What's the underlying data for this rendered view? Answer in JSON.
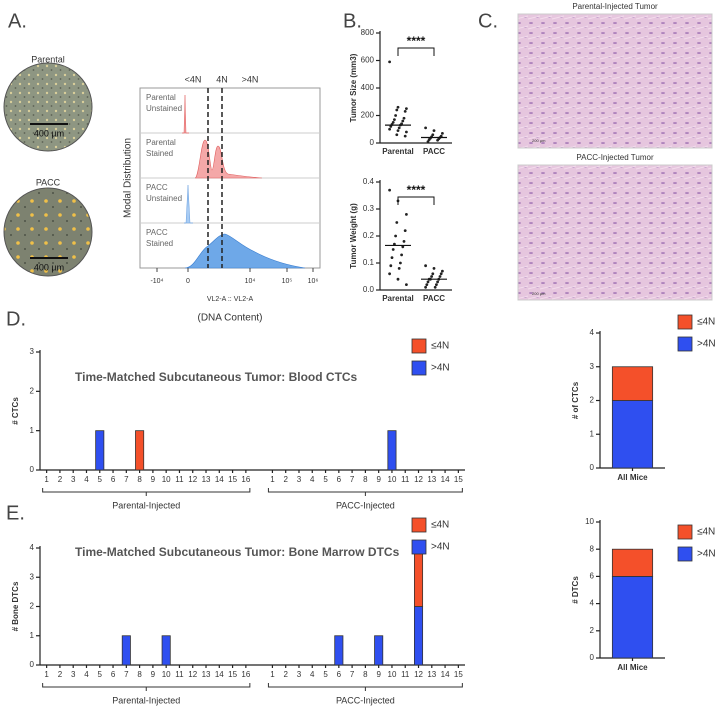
{
  "panel_labels": [
    "A.",
    "B.",
    "C.",
    "D.",
    "E."
  ],
  "panel_a": {
    "images": [
      {
        "label": "Parental",
        "scale": "400 µm"
      },
      {
        "label": "PACC",
        "scale": "400 µm"
      }
    ],
    "flow": {
      "y_label": "Modal Distribution",
      "gates": [
        "<4N",
        "4N",
        ">4N"
      ],
      "rows": [
        [
          "Parental",
          "Unstained"
        ],
        [
          "Parental",
          "Stained"
        ],
        [
          "PACC",
          "Unstained"
        ],
        [
          "PACC",
          "Stained"
        ]
      ],
      "x_ticks": [
        "-10⁴",
        "0",
        "10⁴",
        "10⁵",
        "10⁶"
      ],
      "x_label": "VL2-A :: VL2-A",
      "x_caption": "(DNA Content)"
    }
  },
  "panel_c": {
    "images": [
      {
        "label": "Parental-Injected Tumor",
        "scale": "200 µm"
      },
      {
        "label": "PACC-Injected Tumor",
        "scale": "200 µm"
      }
    ]
  },
  "chart_data": [
    {
      "type": "strip",
      "y_label": "Tumor Size (mm3)",
      "categories": [
        "Parental",
        "PACC"
      ],
      "values": [
        [
          590,
          260,
          250,
          240,
          230,
          200,
          180,
          170,
          160,
          150,
          140,
          135,
          130,
          120,
          110,
          100,
          90,
          80,
          60,
          50
        ],
        [
          110,
          90,
          70,
          60,
          50,
          45,
          40,
          35,
          30,
          25,
          20,
          10
        ]
      ],
      "medians": [
        130,
        40
      ],
      "annotation": "****",
      "color": "#222",
      "ylim": [
        0,
        800
      ],
      "yticks": [
        0,
        200,
        400,
        600,
        800
      ]
    },
    {
      "type": "strip",
      "y_label": "Tumor Weight (g)",
      "categories": [
        "Parental",
        "PACC"
      ],
      "values": [
        [
          0.37,
          0.33,
          0.28,
          0.25,
          0.22,
          0.2,
          0.18,
          0.17,
          0.16,
          0.15,
          0.13,
          0.12,
          0.1,
          0.09,
          0.08,
          0.06,
          0.04,
          0.02
        ],
        [
          0.09,
          0.08,
          0.07,
          0.06,
          0.06,
          0.05,
          0.05,
          0.04,
          0.04,
          0.04,
          0.03,
          0.03,
          0.02,
          0.02,
          0.01,
          0.01
        ]
      ],
      "medians": [
        0.165,
        0.04
      ],
      "annotation": "****",
      "color": "#222",
      "ylim": [
        0,
        0.4
      ],
      "yticks": [
        {
          "value": 0,
          "label": "0.0"
        },
        0.1,
        0.2,
        0.3,
        0.4
      ]
    },
    {
      "type": "bar",
      "stacked": true,
      "title": "Time-Matched Subcutaneous Tumor: Blood CTCs",
      "y_label": "# CTCs",
      "groups": [
        {
          "name": "Parental-Injected",
          "categories": [
            "1",
            "2",
            "3",
            "4",
            "5",
            "6",
            "7",
            "8",
            "9",
            "10",
            "11",
            "12",
            "13",
            "14",
            "15",
            "16"
          ]
        },
        {
          "name": "PACC-Injected",
          "categories": [
            "1",
            "2",
            "3",
            "4",
            "5",
            "6",
            "7",
            "8",
            "9",
            "10",
            "11",
            "12",
            "13",
            "14",
            "15"
          ]
        }
      ],
      "series": [
        {
          "name": "≤4N",
          "color": "#f4502a",
          "values": [
            0,
            0,
            0,
            0,
            0,
            0,
            0,
            1,
            0,
            0,
            0,
            0,
            0,
            0,
            0,
            0,
            0,
            0,
            0,
            0,
            0,
            0,
            0,
            0,
            0,
            0,
            0,
            0,
            0,
            0,
            0
          ]
        },
        {
          "name": ">4N",
          "color": "#2f4ff0",
          "values": [
            0,
            0,
            0,
            0,
            1,
            0,
            0,
            0,
            0,
            0,
            0,
            0,
            0,
            0,
            0,
            0,
            0,
            0,
            0,
            0,
            0,
            0,
            0,
            0,
            0,
            1,
            0,
            0,
            0,
            0,
            0
          ]
        }
      ],
      "ylim": [
        0,
        3
      ],
      "yticks": [
        0,
        1,
        2,
        3
      ]
    },
    {
      "type": "bar",
      "stacked": true,
      "y_label": "# of CTCs",
      "categories": [
        "All Mice"
      ],
      "series": [
        {
          "name": "≤4N",
          "color": "#f4502a",
          "values": [
            1
          ]
        },
        {
          "name": ">4N",
          "color": "#2f4ff0",
          "values": [
            2
          ]
        }
      ],
      "ylim": [
        0,
        4
      ],
      "yticks": [
        0,
        1,
        2,
        3,
        4
      ]
    },
    {
      "type": "bar",
      "stacked": true,
      "title": "Time-Matched Subcutaneous Tumor: Bone Marrow DTCs",
      "y_label": "# Bone DTCs",
      "groups": [
        {
          "name": "Parental-Injected",
          "categories": [
            "1",
            "2",
            "3",
            "4",
            "5",
            "6",
            "7",
            "8",
            "9",
            "10",
            "11",
            "12",
            "13",
            "14",
            "15",
            "16"
          ]
        },
        {
          "name": "PACC-Injected",
          "categories": [
            "1",
            "2",
            "3",
            "4",
            "5",
            "6",
            "7",
            "8",
            "9",
            "10",
            "11",
            "12",
            "13",
            "14",
            "15"
          ]
        }
      ],
      "series": [
        {
          "name": "≤4N",
          "color": "#f4502a",
          "values": [
            0,
            0,
            0,
            0,
            0,
            0,
            0,
            0,
            0,
            0,
            0,
            0,
            0,
            0,
            0,
            0,
            0,
            0,
            0,
            0,
            0,
            0,
            0,
            0,
            0,
            0,
            0,
            2,
            0,
            0,
            0
          ]
        },
        {
          "name": ">4N",
          "color": "#2f4ff0",
          "values": [
            0,
            0,
            0,
            0,
            0,
            0,
            1,
            0,
            0,
            1,
            0,
            0,
            0,
            0,
            0,
            0,
            0,
            0,
            0,
            0,
            0,
            1,
            0,
            0,
            1,
            0,
            0,
            2,
            0,
            0,
            0
          ]
        }
      ],
      "ylim": [
        0,
        4
      ],
      "yticks": [
        0,
        1,
        2,
        3,
        4
      ]
    },
    {
      "type": "bar",
      "stacked": true,
      "y_label": "# DTCs",
      "categories": [
        "All Mice"
      ],
      "series": [
        {
          "name": "≤4N",
          "color": "#f4502a",
          "values": [
            2
          ]
        },
        {
          "name": ">4N",
          "color": "#2f4ff0",
          "values": [
            6
          ]
        }
      ],
      "ylim": [
        0,
        10
      ],
      "yticks": [
        0,
        2,
        4,
        6,
        8,
        10
      ]
    }
  ]
}
